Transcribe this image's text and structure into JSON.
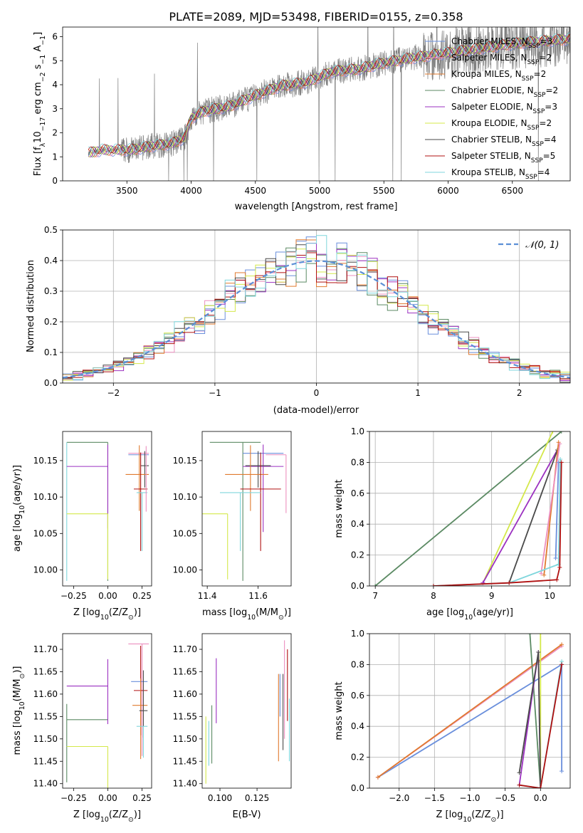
{
  "figure": {
    "title": "PLATE=2089, MJD=53498, FIBERID=0155, z=0.358"
  },
  "series": [
    {
      "key": "chm",
      "label": "Chabrier MILES, N",
      "sub": "SSP",
      "suffix": "=3",
      "color": "#6a8fdc"
    },
    {
      "key": "sam",
      "label": "Salpeter MILES, N",
      "sub": "SSP",
      "suffix": "=2",
      "color": "#ec8fbf"
    },
    {
      "key": "krm",
      "label": "Kroupa MILES, N",
      "sub": "SSP",
      "suffix": "=2",
      "color": "#e07a2e"
    },
    {
      "key": "che",
      "label": "Chabrier ELODIE, N",
      "sub": "SSP",
      "suffix": "=2",
      "color": "#5b8a63"
    },
    {
      "key": "sae",
      "label": "Salpeter ELODIE, N",
      "sub": "SSP",
      "suffix": "=3",
      "color": "#9b30c0"
    },
    {
      "key": "kre",
      "label": "Kroupa ELODIE, N",
      "sub": "SSP",
      "suffix": "=2",
      "color": "#d4e84a"
    },
    {
      "key": "chs",
      "label": "Chabrier STELIB, N",
      "sub": "SSP",
      "suffix": "=4",
      "color": "#4a4a4a"
    },
    {
      "key": "sas",
      "label": "Salpeter STELIB, N",
      "sub": "SSP",
      "suffix": "=5",
      "color": "#b01010"
    },
    {
      "key": "krs",
      "label": "Kroupa STELIB, N",
      "sub": "SSP",
      "suffix": "=4",
      "color": "#7fd6dc"
    }
  ],
  "chart_data": [
    {
      "id": "spectrum",
      "type": "line",
      "xlabel": "wavelength [Angstrom, rest frame]",
      "ylabel": "Flux [f",
      "ylabel_parts": [
        "Flux [f",
        "λ",
        "10",
        "−17",
        " erg cm",
        "−2",
        " s",
        "−1",
        " A",
        "−1",
        "]"
      ],
      "xlim": [
        3000,
        6950
      ],
      "ylim": [
        0,
        6.4
      ],
      "xticks": [
        3500,
        4000,
        4500,
        5000,
        5500,
        6000,
        6500
      ],
      "yticks": [
        0,
        1,
        2,
        3,
        4,
        5,
        6
      ],
      "grid": false,
      "legend": "right",
      "data_color": "#808080",
      "continuum": {
        "x": [
          3200,
          3300,
          3450,
          3550,
          3700,
          3850,
          3950,
          4000,
          4100,
          4300,
          4500,
          4700,
          4900,
          5100,
          5300,
          5500,
          5700,
          5900,
          6100,
          6300,
          6500,
          6700,
          6950
        ],
        "y": [
          1.15,
          1.28,
          1.28,
          1.3,
          1.45,
          1.55,
          1.8,
          2.6,
          2.9,
          3.1,
          3.55,
          3.95,
          4.1,
          4.55,
          4.65,
          4.9,
          5.1,
          5.25,
          5.4,
          5.55,
          5.7,
          5.8,
          5.9
        ]
      }
    },
    {
      "id": "residuals",
      "type": "histogram",
      "xlabel": "(data-model)/error",
      "ylabel": "Normed distribution",
      "xlim": [
        -2.5,
        2.5
      ],
      "ylim": [
        0,
        0.5
      ],
      "xticks": [
        -2,
        -1,
        0,
        1,
        2
      ],
      "yticks": [
        0.0,
        0.1,
        0.2,
        0.3,
        0.4,
        0.5
      ],
      "grid": true,
      "legend": "top-right",
      "gauss_label": "𝒩(0, 1)",
      "gauss_color": "#5b8fd6",
      "bin_width": 0.1
    },
    {
      "id": "age-vs-Z",
      "type": "errorbar",
      "xlabel": "Z [log10(Z/Z⊙)]",
      "xlabel_parts": [
        "Z [log",
        "10",
        "(Z/Z",
        "⊙",
        ")]"
      ],
      "ylabel_parts": [
        "age  [log",
        "10",
        "(age/yr)]"
      ],
      "xlim": [
        -0.33,
        0.32
      ],
      "ylim": [
        9.978,
        10.19
      ],
      "xticks": [
        -0.25,
        0.0,
        0.25
      ],
      "yticks": [
        10.0,
        10.05,
        10.1,
        10.15
      ],
      "ticklabels_x": [
        "−0.25",
        "0.00",
        "0.25"
      ],
      "ticklabels_y": [
        "10.00",
        "10.05",
        "10.10",
        "10.15"
      ],
      "points": [
        {
          "s": "che",
          "x": 0.0,
          "xe": [
            0.3,
            0.0
          ],
          "y": 10.175,
          "ye": [
            0.19,
            0.0
          ]
        },
        {
          "s": "krs",
          "x": -0.3,
          "xe": [
            0.0,
            0.0
          ],
          "y": 10.175,
          "ye": [
            0.19,
            0.0
          ]
        },
        {
          "s": "sae",
          "x": 0.0,
          "xe": [
            0.3,
            0.0
          ],
          "y": 10.142,
          "ye": [
            0.085,
            0.03
          ]
        },
        {
          "s": "kre",
          "x": 0.0,
          "xe": [
            0.3,
            0.0
          ],
          "y": 10.077,
          "ye": [
            0.09,
            0.0
          ]
        },
        {
          "s": "sam",
          "x": 0.25,
          "xe": [
            0.1,
            0.05
          ],
          "y": 10.16,
          "ye": [
            0.0,
            0.0
          ]
        },
        {
          "s": "chm",
          "x": 0.25,
          "xe": [
            0.1,
            0.05
          ],
          "y": 10.158,
          "ye": [
            0.0,
            0.0
          ]
        },
        {
          "s": "chs",
          "x": 0.27,
          "xe": [
            0.03,
            0.03
          ],
          "y": 10.143,
          "ye": [
            0.03,
            0.02
          ]
        },
        {
          "s": "krm",
          "x": 0.23,
          "xe": [
            0.1,
            0.07
          ],
          "y": 10.131,
          "ye": [
            0.05,
            0.04
          ]
        },
        {
          "s": "sas",
          "x": 0.24,
          "xe": [
            0.05,
            0.05
          ],
          "y": 10.111,
          "ye": [
            0.085,
            0.05
          ]
        },
        {
          "s": "krs",
          "x": 0.25,
          "xe": [
            0.04,
            0.04
          ],
          "y": 10.106,
          "ye": [
            0.08,
            0.0
          ]
        },
        {
          "s": "sam",
          "x": 0.28,
          "xe": [
            0.0,
            0.0
          ],
          "y": 10.13,
          "ye": [
            0.05,
            0.04
          ]
        }
      ]
    },
    {
      "id": "age-vs-mass",
      "type": "errorbar",
      "xlabel_parts": [
        "mass [log",
        "10",
        "(M/M",
        "⊙",
        ")]"
      ],
      "xlim": [
        11.38,
        11.73
      ],
      "ylim": [
        9.978,
        10.19
      ],
      "xticks": [
        11.4,
        11.6
      ],
      "yticks": [
        10.0,
        10.05,
        10.1,
        10.15
      ],
      "ticklabels_x": [
        "11.4",
        "11.6"
      ],
      "ticklabels_y": [
        "10.00",
        "10.05",
        "10.10",
        "10.15"
      ],
      "points": [
        {
          "s": "che",
          "x": 11.54,
          "xe": [
            0.13,
            0.07
          ],
          "y": 10.175,
          "ye": [
            0.19,
            0.0
          ]
        },
        {
          "s": "chm",
          "x": 11.63,
          "xe": [
            0.09,
            0.07
          ],
          "y": 10.16,
          "ye": [
            0.0,
            0.0
          ]
        },
        {
          "s": "sam",
          "x": 11.71,
          "xe": [
            0.08,
            0.0
          ],
          "y": 10.158,
          "ye": [
            0.08,
            0.0
          ]
        },
        {
          "s": "sae",
          "x": 11.62,
          "xe": [
            0.08,
            0.08
          ],
          "y": 10.142,
          "ye": [
            0.09,
            0.03
          ]
        },
        {
          "s": "chs",
          "x": 11.6,
          "xe": [
            0.05,
            0.05
          ],
          "y": 10.143,
          "ye": [
            0.03,
            0.02
          ]
        },
        {
          "s": "krm",
          "x": 11.57,
          "xe": [
            0.1,
            0.07
          ],
          "y": 10.131,
          "ye": [
            0.05,
            0.04
          ]
        },
        {
          "s": "sas",
          "x": 11.61,
          "xe": [
            0.08,
            0.08
          ],
          "y": 10.111,
          "ye": [
            0.085,
            0.05
          ]
        },
        {
          "s": "krs",
          "x": 11.53,
          "xe": [
            0.08,
            0.08
          ],
          "y": 10.106,
          "ye": [
            0.08,
            0.0
          ]
        },
        {
          "s": "kre",
          "x": 11.48,
          "xe": [
            0.1,
            0.0
          ],
          "y": 10.077,
          "ye": [
            0.09,
            0.0
          ]
        }
      ]
    },
    {
      "id": "weight-vs-age",
      "type": "line",
      "xlabel_parts": [
        "age  [log",
        "10",
        "(age/yr)]"
      ],
      "ylabel": "mass weight",
      "xlim": [
        6.9,
        10.35
      ],
      "ylim": [
        0,
        1.0
      ],
      "xticks": [
        7,
        8,
        9,
        10
      ],
      "yticks": [
        0.0,
        0.2,
        0.4,
        0.6,
        0.8,
        1.0
      ],
      "ticklabels_x": [
        "7",
        "8",
        "9",
        "10"
      ],
      "ticklabels_y": [
        "0.0",
        "0.2",
        "0.4",
        "0.6",
        "0.8",
        "1.0"
      ],
      "grid": true,
      "lines": [
        {
          "s": "che",
          "x": [
            7.0,
            10.2
          ],
          "y": [
            0.0,
            1.0
          ]
        },
        {
          "s": "kre",
          "x": [
            8.85,
            10.05
          ],
          "y": [
            0.02,
            1.0
          ]
        },
        {
          "s": "sae",
          "x": [
            8.85,
            10.13
          ],
          "y": [
            0.02,
            0.88
          ]
        },
        {
          "s": "chs",
          "x": [
            9.3,
            10.13
          ],
          "y": [
            0.02,
            0.88
          ]
        },
        {
          "s": "krm",
          "x": [
            9.9,
            10.15
          ],
          "y": [
            0.07,
            0.93
          ]
        },
        {
          "s": "sam",
          "x": [
            9.85,
            10.17
          ],
          "y": [
            0.08,
            0.92
          ]
        },
        {
          "s": "chm",
          "x": [
            10.1,
            10.15
          ],
          "y": [
            0.18,
            0.8
          ]
        },
        {
          "s": "krs",
          "x": [
            8.0,
            9.3,
            10.15,
            10.18
          ],
          "y": [
            0.0,
            0.02,
            0.14,
            0.82
          ]
        },
        {
          "s": "sas",
          "x": [
            8.0,
            9.3,
            10.12,
            10.17,
            10.2
          ],
          "y": [
            0.0,
            0.02,
            0.04,
            0.12,
            0.8
          ]
        }
      ]
    },
    {
      "id": "mass-vs-Z",
      "type": "errorbar",
      "xlabel_parts": [
        "Z [log",
        "10",
        "(Z/Z",
        "⊙",
        ")]"
      ],
      "ylabel_parts": [
        "mass [log",
        "10",
        "(M/M",
        "⊙",
        ")]"
      ],
      "xlim": [
        -0.33,
        0.32
      ],
      "ylim": [
        11.39,
        11.735
      ],
      "xticks": [
        -0.25,
        0.0,
        0.25
      ],
      "yticks": [
        11.4,
        11.45,
        11.5,
        11.55,
        11.6,
        11.65,
        11.7
      ],
      "ticklabels_x": [
        "−0.25",
        "0.00",
        "0.25"
      ],
      "ticklabels_y": [
        "11.40",
        "11.45",
        "11.50",
        "11.55",
        "11.60",
        "11.65",
        "11.70"
      ],
      "points": [
        {
          "s": "che",
          "x": -0.3,
          "xe": [
            0.0,
            0.3
          ],
          "y": 11.543,
          "ye": [
            0.14,
            0.035
          ]
        },
        {
          "s": "kre",
          "x": 0.0,
          "xe": [
            0.3,
            0.0
          ],
          "y": 11.483,
          "ye": [
            0.1,
            0.0
          ]
        },
        {
          "s": "sae",
          "x": 0.0,
          "xe": [
            0.3,
            0.0
          ],
          "y": 11.618,
          "ye": [
            0.085,
            0.06
          ]
        },
        {
          "s": "sam",
          "x": 0.25,
          "xe": [
            0.1,
            0.05
          ],
          "y": 11.712,
          "ye": [
            0.25,
            0.0
          ]
        },
        {
          "s": "chm",
          "x": 0.24,
          "xe": [
            0.07,
            0.05
          ],
          "y": 11.628,
          "ye": [
            0.0,
            0.0
          ]
        },
        {
          "s": "sas",
          "x": 0.24,
          "xe": [
            0.05,
            0.05
          ],
          "y": 11.608,
          "ye": [
            0.1,
            0.1
          ]
        },
        {
          "s": "krm",
          "x": 0.24,
          "xe": [
            0.06,
            0.05
          ],
          "y": 11.575,
          "ye": [
            0.12,
            0.06
          ]
        },
        {
          "s": "chs",
          "x": 0.26,
          "xe": [
            0.03,
            0.03
          ],
          "y": 11.563,
          "ye": [
            0.06,
            0.09
          ]
        },
        {
          "s": "krs",
          "x": 0.26,
          "xe": [
            0.05,
            0.03
          ],
          "y": 11.528,
          "ye": [
            0.07,
            0.0
          ]
        }
      ]
    },
    {
      "id": "mass-vs-EBV",
      "type": "errorbar",
      "xlabel": "E(B-V)",
      "xlim": [
        0.088,
        0.148
      ],
      "ylim": [
        11.39,
        11.735
      ],
      "xticks": [
        0.1,
        0.125
      ],
      "yticks": [
        11.4,
        11.45,
        11.5,
        11.55,
        11.6,
        11.65,
        11.7
      ],
      "ticklabels_x": [
        "0.100",
        "0.125"
      ],
      "ticklabels_y": [
        "11.40",
        "11.45",
        "11.50",
        "11.55",
        "11.60",
        "11.65",
        "11.70"
      ],
      "points": [
        {
          "s": "kre",
          "x": 0.0905,
          "xe": [
            0,
            0
          ],
          "y": 11.48,
          "ye": [
            0.08,
            0.07
          ]
        },
        {
          "s": "krs",
          "x": 0.0925,
          "xe": [
            0,
            0
          ],
          "y": 11.49,
          "ye": [
            0.05,
            0.05
          ]
        },
        {
          "s": "che",
          "x": 0.0945,
          "xe": [
            0,
            0
          ],
          "y": 11.525,
          "ye": [
            0.08,
            0.05
          ]
        },
        {
          "s": "sae",
          "x": 0.0975,
          "xe": [
            0,
            0
          ],
          "y": 11.605,
          "ye": [
            0.07,
            0.075
          ]
        },
        {
          "s": "krm",
          "x": 0.1395,
          "xe": [
            0,
            0
          ],
          "y": 11.55,
          "ye": [
            0.1,
            0.095
          ]
        },
        {
          "s": "chm",
          "x": 0.1405,
          "xe": [
            0,
            0
          ],
          "y": 11.6,
          "ye": [
            0.05,
            0.045
          ]
        },
        {
          "s": "chs",
          "x": 0.1425,
          "xe": [
            0,
            0
          ],
          "y": 11.565,
          "ye": [
            0.09,
            0.08
          ]
        },
        {
          "s": "sam",
          "x": 0.1435,
          "xe": [
            0,
            0
          ],
          "y": 11.62,
          "ye": [
            0.12,
            0.1
          ]
        },
        {
          "s": "sas",
          "x": 0.1455,
          "xe": [
            0,
            0
          ],
          "y": 11.6,
          "ye": [
            0.06,
            0.1
          ]
        },
        {
          "s": "krs",
          "x": 0.1468,
          "xe": [
            0,
            0
          ],
          "y": 11.52,
          "ye": [
            0.07,
            0.07
          ]
        }
      ]
    },
    {
      "id": "weight-vs-Z",
      "type": "line",
      "xlabel_parts": [
        "Z [log",
        "10",
        "(Z/Z",
        "⊙",
        ")]"
      ],
      "ylabel": "mass weight",
      "xlim": [
        -2.42,
        0.42
      ],
      "ylim": [
        0,
        1.0
      ],
      "xticks": [
        -2.0,
        -1.5,
        -1.0,
        -0.5,
        0.0
      ],
      "yticks": [
        0.0,
        0.2,
        0.4,
        0.6,
        0.8,
        1.0
      ],
      "ticklabels_x": [
        "−2.0",
        "−1.5",
        "−1.0",
        "−0.5",
        "0.0"
      ],
      "ticklabels_y": [
        "0.0",
        "0.2",
        "0.4",
        "0.6",
        "0.8",
        "1.0"
      ],
      "grid": true,
      "lines": [
        {
          "s": "chm",
          "x": [
            -2.3,
            0.3,
            0.3
          ],
          "y": [
            0.07,
            0.8,
            0.11
          ]
        },
        {
          "s": "sam",
          "x": [
            -2.3,
            0.3
          ],
          "y": [
            0.07,
            0.92
          ]
        },
        {
          "s": "krm",
          "x": [
            -2.3,
            0.3
          ],
          "y": [
            0.07,
            0.93
          ]
        },
        {
          "s": "che",
          "x": [
            -0.15,
            0.0
          ],
          "y": [
            1.0,
            0.0
          ]
        },
        {
          "s": "kre",
          "x": [
            0.0,
            0.0
          ],
          "y": [
            0.0,
            1.0
          ]
        },
        {
          "s": "sae",
          "x": [
            -0.3,
            -0.03,
            0.0
          ],
          "y": [
            0.02,
            0.88,
            0.0
          ]
        },
        {
          "s": "chs",
          "x": [
            -0.3,
            -0.03,
            0.0
          ],
          "y": [
            0.1,
            0.88,
            0.0
          ]
        },
        {
          "s": "krs",
          "x": [
            -0.3,
            0.0,
            0.3
          ],
          "y": [
            0.02,
            0.0,
            0.82
          ]
        },
        {
          "s": "sas",
          "x": [
            -0.3,
            0.0,
            0.3
          ],
          "y": [
            0.02,
            0.0,
            0.8
          ]
        }
      ]
    }
  ]
}
